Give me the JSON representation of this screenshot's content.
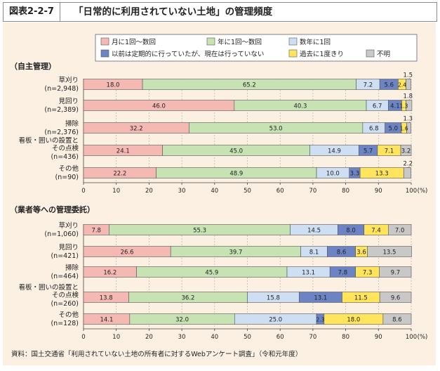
{
  "figure": {
    "label": "図表2-2-7",
    "title": "「日常的に利用されていない土地」の管理頻度",
    "source": "資料：国土交通省「利用されていない土地の所有者に対するWebアンケート調査」（令和元年度）"
  },
  "colors": {
    "monthly": "#f4b9b3",
    "yearly": "#c7e3b4",
    "few_years": "#cfdff3",
    "before": "#6c84c3",
    "once": "#ffe45c",
    "unknown": "#c8c8c8",
    "panel_bg": "#fbf0e2",
    "stroke": "#444444"
  },
  "chart_data": {
    "type": "stacked-bar-horizontal",
    "legend": [
      {
        "key": "monthly",
        "label": "月に1回～数回"
      },
      {
        "key": "yearly",
        "label": "年に1回～数回"
      },
      {
        "key": "few_years",
        "label": "数年に1回"
      },
      {
        "key": "before",
        "label": "以前は定期的に行っていたが、現在は行っていない"
      },
      {
        "key": "once",
        "label": "過去に1度きり"
      },
      {
        "key": "unknown",
        "label": "不明"
      }
    ],
    "xlim": [
      0,
      100
    ],
    "xticks": [
      0,
      10,
      20,
      30,
      40,
      50,
      60,
      70,
      80,
      90,
      100
    ],
    "x_unit": "(%)",
    "panels": [
      {
        "title": "（自主管理）",
        "rows": [
          {
            "label": "草刈り",
            "n": "(n=2,948)",
            "values": [
              18.0,
              65.2,
              7.2,
              5.6,
              2.4,
              1.5
            ],
            "texts": [
              "18.0",
              "65.2",
              "7.2",
              "5.6",
              "2.4",
              "1.5"
            ]
          },
          {
            "label": "見回り",
            "n": "(n=2,389)",
            "values": [
              46.0,
              40.3,
              6.7,
              4.1,
              1.3,
              1.8
            ],
            "texts": [
              "46.0",
              "40.3",
              "6.7",
              "4.1",
              "1.3",
              "1.8"
            ]
          },
          {
            "label": "掃除",
            "n": "(n=2,376)",
            "values": [
              32.2,
              53.0,
              6.8,
              5.0,
              1.6,
              1.3
            ],
            "texts": [
              "32.2",
              "53.0",
              "6.8",
              "5.0",
              "1.6",
              "1.3"
            ]
          },
          {
            "label": "看板・囲いの設置と\nその点検",
            "n": "(n=436)",
            "values": [
              24.1,
              45.0,
              14.9,
              5.7,
              7.1,
              3.2
            ],
            "texts": [
              "24.1",
              "45.0",
              "14.9",
              "5.7",
              "7.1",
              "3.2"
            ]
          },
          {
            "label": "その他",
            "n": "(n=90)",
            "values": [
              22.2,
              48.9,
              10.0,
              3.3,
              13.3,
              2.2
            ],
            "texts": [
              "22.2",
              "48.9",
              "10.0",
              "3.3",
              "13.3",
              "2.2"
            ]
          }
        ]
      },
      {
        "title": "（業者等への管理委託）",
        "rows": [
          {
            "label": "草刈り",
            "n": "(n=1,060)",
            "values": [
              7.8,
              55.3,
              14.5,
              8.0,
              7.4,
              7.0
            ],
            "texts": [
              "7.8",
              "55.3",
              "14.5",
              "8.0",
              "7.4",
              "7.0"
            ]
          },
          {
            "label": "見回り",
            "n": "(n=421)",
            "values": [
              26.6,
              39.7,
              8.1,
              8.6,
              3.6,
              13.5
            ],
            "texts": [
              "26.6",
              "39.7",
              "8.1",
              "8.6",
              "3.6",
              "13.5"
            ]
          },
          {
            "label": "掃除",
            "n": "(n=464)",
            "values": [
              16.2,
              45.9,
              13.1,
              7.8,
              7.3,
              9.7
            ],
            "texts": [
              "16.2",
              "45.9",
              "13.1",
              "7.8",
              "7.3",
              "9.7"
            ]
          },
          {
            "label": "看板・囲いの設置と\nその点検",
            "n": "(n=260)",
            "values": [
              13.8,
              36.2,
              15.8,
              13.1,
              11.5,
              9.6
            ],
            "texts": [
              "13.8",
              "36.2",
              "15.8",
              "13.1",
              "11.5",
              "9.6"
            ]
          },
          {
            "label": "その他",
            "n": "(n=128)",
            "values": [
              14.1,
              32.0,
              25.0,
              2.3,
              18.0,
              8.6
            ],
            "texts": [
              "14.1",
              "32.0",
              "25.0",
              "2.3",
              "18.0",
              "8.6"
            ]
          }
        ]
      }
    ]
  }
}
